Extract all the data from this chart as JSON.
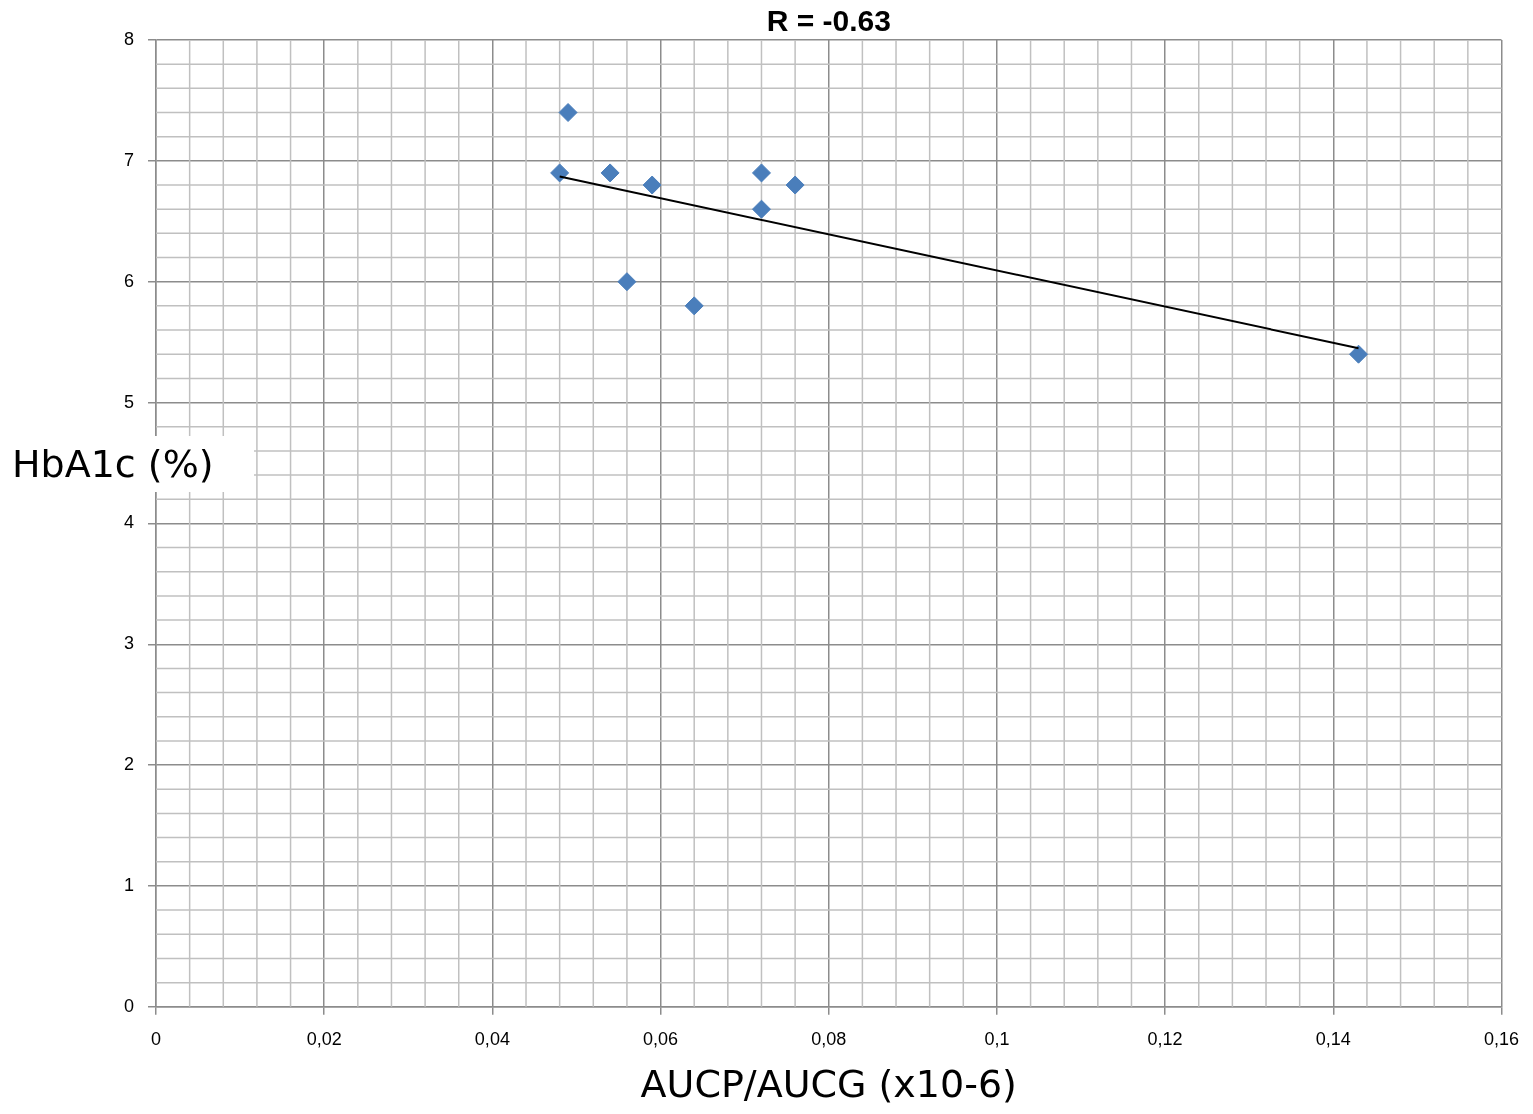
{
  "chart_data": {
    "type": "scatter",
    "xlabel": "AUCP/AUCG (x10-6)",
    "ylabel": "HbA1c (%)",
    "annotations": [
      "R = -0.63"
    ],
    "x": [
      0.048,
      0.049,
      0.054,
      0.059,
      0.056,
      0.064,
      0.072,
      0.072,
      0.076,
      0.143
    ],
    "series": [
      {
        "color": "#4a7ebb",
        "values": [
          6.9,
          7.4,
          6.9,
          6.8,
          6.0,
          5.8,
          6.9,
          6.6,
          6.8,
          5.4
        ]
      },
      {
        "type": "line",
        "marker": "none",
        "color": "#000000",
        "x": [
          0.048,
          0.143
        ],
        "values": [
          6.87,
          5.45
        ]
      }
    ],
    "xlim": [
      0,
      0.16
    ],
    "ylim": [
      0,
      8
    ],
    "xticks": [
      0,
      {
        "value": 0.02,
        "label": "0,02"
      },
      {
        "value": 0.04,
        "label": "0,04"
      },
      {
        "value": 0.06,
        "label": "0,06"
      },
      {
        "value": 0.08,
        "label": "0,08"
      },
      {
        "value": 0.1,
        "label": "0,1"
      },
      {
        "value": 0.12,
        "label": "0,12"
      },
      {
        "value": 0.14,
        "label": "0,14"
      },
      {
        "value": 0.16,
        "label": "0,16"
      }
    ],
    "yticks": [
      0,
      1,
      2,
      3,
      4,
      5,
      6,
      7,
      8
    ],
    "grid": true,
    "marker": "diamond",
    "legend": false
  }
}
